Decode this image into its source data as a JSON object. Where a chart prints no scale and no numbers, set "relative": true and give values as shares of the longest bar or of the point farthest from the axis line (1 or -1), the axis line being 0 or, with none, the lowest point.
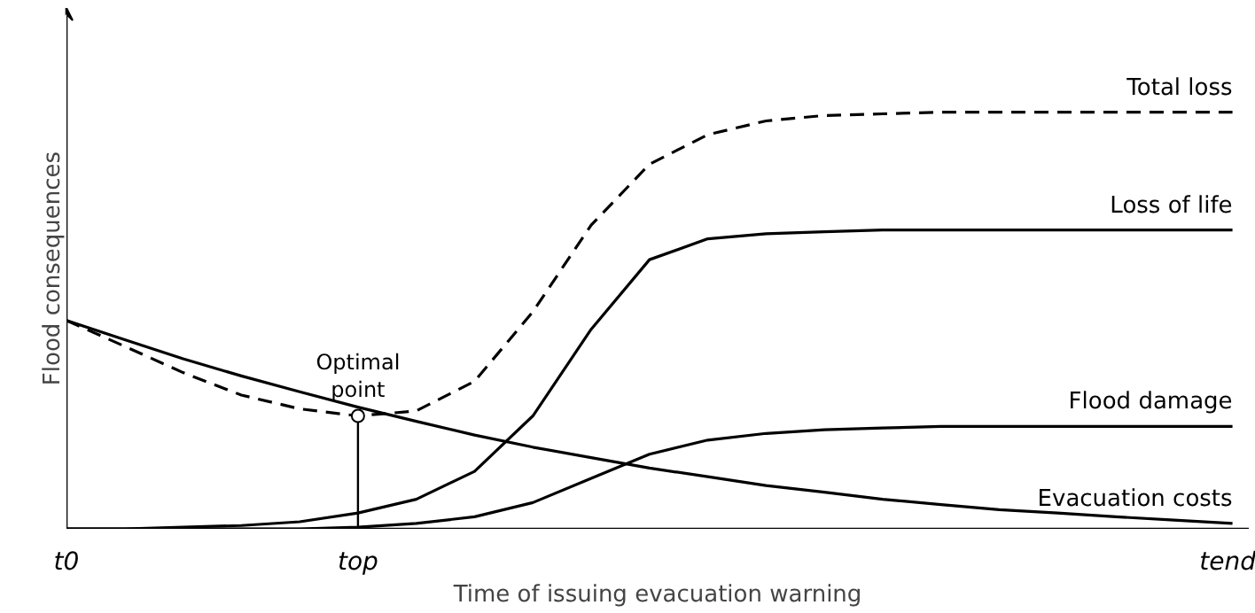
{
  "chart_data": {
    "type": "line",
    "relative": true,
    "xlabel": "Time of issuing evacuation warning",
    "ylabel": "Flood consequences",
    "categories": [
      "t0",
      null,
      null,
      null,
      null,
      "top",
      null,
      null,
      null,
      null,
      null,
      null,
      null,
      null,
      null,
      null,
      null,
      null,
      null,
      null,
      "tend"
    ],
    "series": [
      {
        "name": "Total loss",
        "color": "#000000",
        "line_style": "dashed",
        "values": [
          0.5,
          0.438,
          0.375,
          0.321,
          0.288,
          0.271,
          0.283,
          0.354,
          0.521,
          0.729,
          0.875,
          0.946,
          0.979,
          0.992,
          0.996,
          1,
          1,
          1,
          1,
          1,
          1
        ]
      },
      {
        "name": "Loss of life",
        "color": "#000000",
        "line_style": "solid",
        "values": [
          0,
          0,
          0.004,
          0.008,
          0.017,
          0.038,
          0.071,
          0.138,
          0.271,
          0.479,
          0.646,
          0.696,
          0.708,
          0.713,
          0.717,
          0.717,
          0.717,
          0.717,
          0.717,
          0.717,
          0.717
        ]
      },
      {
        "name": "Flood damage",
        "color": "#000000",
        "line_style": "solid",
        "values": [
          0,
          0,
          0,
          0,
          0,
          0.004,
          0.013,
          0.029,
          0.063,
          0.121,
          0.179,
          0.213,
          0.229,
          0.238,
          0.242,
          0.246,
          0.246,
          0.246,
          0.246,
          0.246,
          0.246
        ]
      },
      {
        "name": "Evacuation costs",
        "color": "#000000",
        "line_style": "solid",
        "values": [
          0.5,
          0.454,
          0.408,
          0.367,
          0.329,
          0.292,
          0.258,
          0.225,
          0.196,
          0.171,
          0.146,
          0.125,
          0.104,
          0.088,
          0.071,
          0.058,
          0.046,
          0.038,
          0.029,
          0.021,
          0.013
        ]
      }
    ],
    "annotations": [
      {
        "text": "Optimal\npoint",
        "x": "top",
        "y": 0.271
      }
    ],
    "marker": "none"
  }
}
